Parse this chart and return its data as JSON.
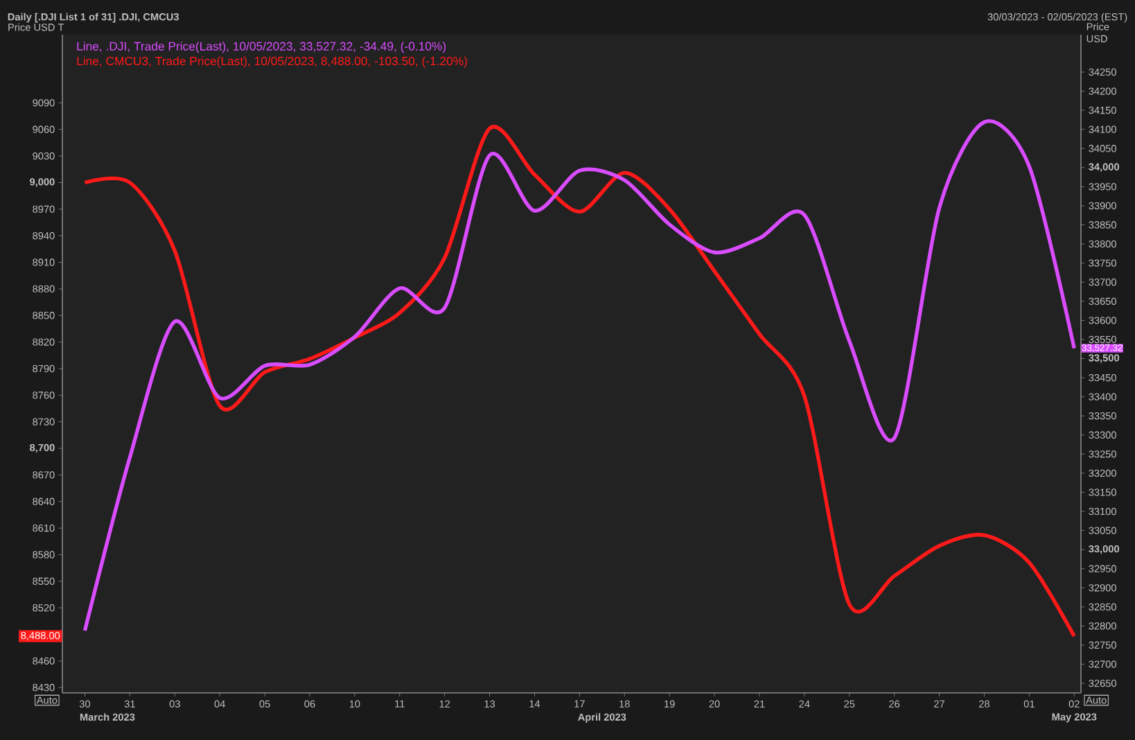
{
  "chart_data": {
    "type": "line",
    "title": "Daily [.DJI List 1 of 31] .DJI, CMCU3",
    "subtitle": "30/03/2023 - 02/05/2023 (EST)",
    "ylabel": "Price USD T",
    "y2label": "Price USD",
    "categories": [
      "30",
      "31",
      "03",
      "04",
      "05",
      "06",
      "10",
      "11",
      "12",
      "13",
      "14",
      "17",
      "18",
      "19",
      "20",
      "21",
      "24",
      "25",
      "26",
      "27",
      "28",
      "01",
      "02"
    ],
    "series": [
      {
        "name": "Line, .DJI, Trade Price(Last), 10/05/2023, 33,527.32, -34.49, (-0.10%)",
        "color": "#d94cff",
        "axis": "y2",
        "values": [
          32788,
          33241,
          33597,
          33397,
          33481,
          33484,
          33557,
          33684,
          33633,
          34032,
          33887,
          33992,
          33967,
          33851,
          33778,
          33815,
          33876,
          33546,
          33292,
          33894,
          34119,
          34003,
          33527
        ]
      },
      {
        "name": "Line, CMCU3, Trade Price(Last), 10/05/2023, 8,488.00, -103.50, (-1.20%)",
        "color": "#ff1a1a",
        "axis": "y",
        "values": [
          9000,
          9000,
          8923,
          8748,
          8786,
          8801,
          8825,
          8853,
          8915,
          9061,
          9009,
          8967,
          9011,
          8970,
          8900,
          8829,
          8759,
          8524,
          8556,
          8590,
          8602,
          8571,
          8488
        ]
      }
    ],
    "ylim": [
      8424,
      9167
    ],
    "yticks": [
      8430,
      8460,
      8520,
      8550,
      8580,
      8610,
      8640,
      8670,
      {
        "value": 8700,
        "label": "**8,700**"
      },
      8730,
      8760,
      8790,
      8820,
      8850,
      8880,
      8910,
      8940,
      8970,
      {
        "value": 9000,
        "label": "**9,000**"
      },
      9030,
      9060,
      9090
    ],
    "y2lim": [
      32625,
      34348
    ],
    "y2ticks": [
      32650,
      32700,
      32750,
      32800,
      32850,
      32900,
      32950,
      {
        "value": 33000,
        "label": "**33,000**"
      },
      33050,
      33100,
      33150,
      33200,
      33250,
      33300,
      33350,
      33400,
      33450,
      {
        "value": 33500,
        "label": "**33,500**"
      },
      33550,
      33600,
      33650,
      33700,
      33750,
      33800,
      33850,
      33900,
      33950,
      {
        "value": 34000,
        "label": "**34,000**"
      },
      34050,
      34100,
      34150,
      34200,
      34250
    ],
    "legend": "top left",
    "marker": "none",
    "line_style": "solid",
    "annotations": [
      "March 2023",
      "April 2023",
      "May 2023",
      "Auto",
      "Auto",
      "8,488.00",
      "33,527.32"
    ]
  }
}
